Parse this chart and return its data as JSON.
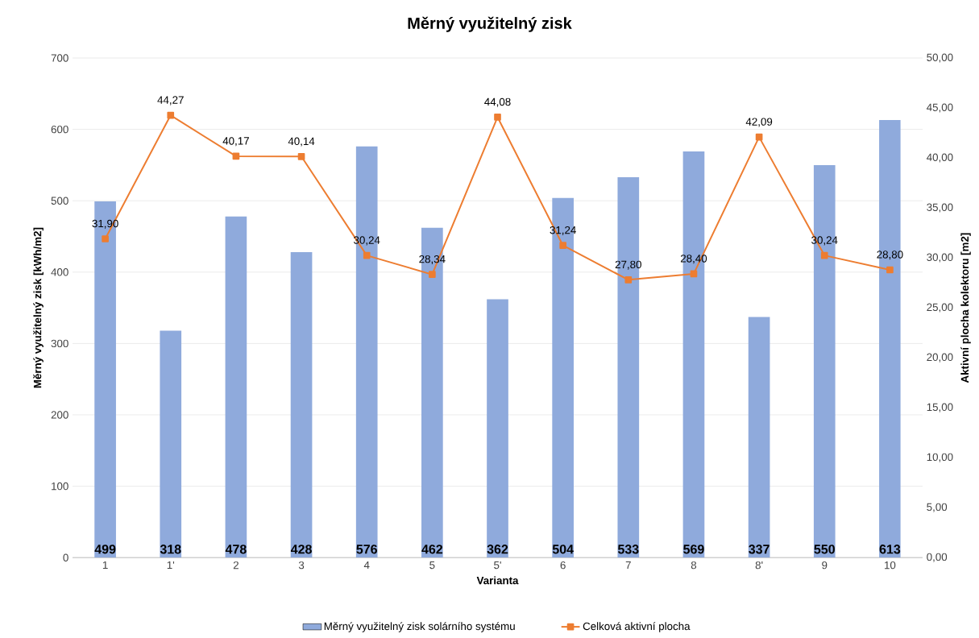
{
  "chart_data": {
    "type": "bar",
    "title": "Měrný využitelný zisk",
    "xlabel": "Varianta",
    "ylabel": "Měrný využitelný zisk [kWh/m2]",
    "y2label": "Aktivní plocha kolektoru [m2]",
    "categories": [
      "1",
      "1'",
      "2",
      "3",
      "4",
      "5",
      "5'",
      "6",
      "7",
      "8",
      "8'",
      "9",
      "10"
    ],
    "series": [
      {
        "name": "Měrný využitelný zisk solárního systému",
        "color": "#8faadc",
        "values": [
          499,
          318,
          478,
          428,
          576,
          462,
          362,
          504,
          533,
          569,
          337,
          550,
          613
        ],
        "value_labels": [
          "499",
          "318",
          "478",
          "428",
          "576",
          "462",
          "362",
          "504",
          "533",
          "569",
          "337",
          "550",
          "613"
        ]
      },
      {
        "name": "Celková aktivní plocha",
        "type": "line",
        "axis": "y2",
        "marker": "square",
        "color": "#ed7d31",
        "values": [
          31.9,
          44.27,
          40.17,
          40.14,
          30.24,
          28.34,
          44.08,
          31.24,
          27.8,
          28.4,
          42.09,
          30.24,
          28.8
        ],
        "value_labels": [
          "31,90",
          "44,27",
          "40,17",
          "40,14",
          "30,24",
          "28,34",
          "44,08",
          "31,24",
          "27,80",
          "28,40",
          "42,09",
          "30,24",
          "28,80"
        ]
      }
    ],
    "ylim": [
      0,
      700
    ],
    "yticks": [
      0,
      100,
      200,
      300,
      400,
      500,
      600,
      700
    ],
    "y2lim": [
      0,
      50
    ],
    "y2ticks": [
      {
        "value": 0,
        "label": "0,00"
      },
      {
        "value": 5,
        "label": "5,00"
      },
      {
        "value": 10,
        "label": "10,00"
      },
      {
        "value": 15,
        "label": "15,00"
      },
      {
        "value": 20,
        "label": "20,00"
      },
      {
        "value": 25,
        "label": "25,00"
      },
      {
        "value": 30,
        "label": "30,00"
      },
      {
        "value": 35,
        "label": "35,00"
      },
      {
        "value": 40,
        "label": "40,00"
      },
      {
        "value": 45,
        "label": "45,00"
      },
      {
        "value": 50,
        "label": "50,00"
      }
    ],
    "grid": "y",
    "legend": "bottom"
  }
}
